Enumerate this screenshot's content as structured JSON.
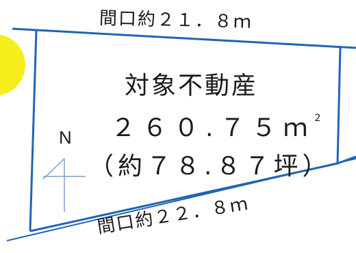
{
  "lot": {
    "frontage_top": "間口約２１．８ｍ",
    "frontage_bottom": "間口約２２．８ｍ",
    "title": "対象不動産",
    "area_value": "２６０.７５ｍ",
    "area_unit_sup": "2",
    "area_tsubo": "（約７８.８７坪）"
  },
  "compass": {
    "label": "N"
  },
  "colors": {
    "boundary": "#1f64b4",
    "marker": "#f5ee1c",
    "compass": "#7f9fcf",
    "text": "#1a1a1a"
  }
}
